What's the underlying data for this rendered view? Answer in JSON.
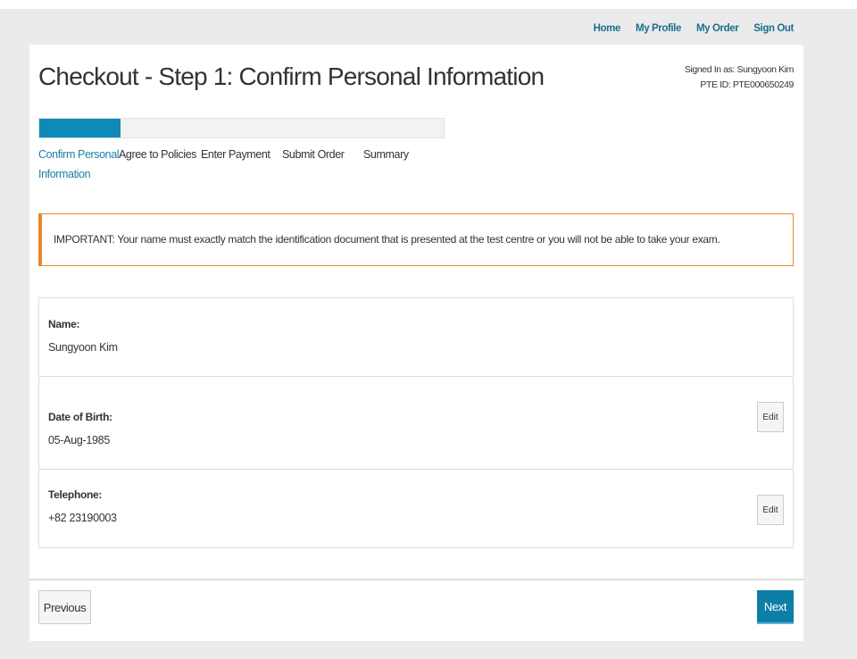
{
  "nav": {
    "home": "Home",
    "profile": "My Profile",
    "order": "My Order",
    "signout": "Sign Out"
  },
  "header": {
    "title": "Checkout - Step 1: Confirm Personal Information",
    "signed_in": "Signed In as: Sungyoon Kim",
    "pte_id": "PTE ID: PTE000650249"
  },
  "progress": {
    "percent": 20,
    "color": "#0e8ab8"
  },
  "steps": [
    {
      "label": "Confirm Personal",
      "label2": "Information",
      "active": true
    },
    {
      "label": "Agree to Policies"
    },
    {
      "label": "Enter Payment"
    },
    {
      "label": "Submit Order"
    },
    {
      "label": "Summary"
    }
  ],
  "alert": {
    "text": "IMPORTANT: Your name must exactly match the identification document that is presented at the test centre or you will not be able to take your exam.",
    "border_color": "#e8862a"
  },
  "fields": [
    {
      "label": "Name:",
      "value": "Sungyoon Kim"
    },
    {
      "label": "Date of Birth:",
      "value": "05-Aug-1985",
      "edit": "Edit"
    },
    {
      "label": "Telephone:",
      "value": "+82 23190003",
      "edit": "Edit"
    }
  ],
  "footer": {
    "previous": "Previous",
    "next": "Next"
  }
}
